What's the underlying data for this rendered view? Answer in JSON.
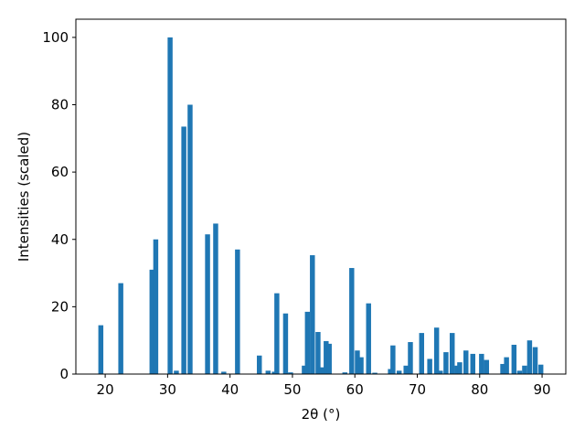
{
  "chart_data": {
    "type": "bar",
    "xlabel": "2θ (°)",
    "ylabel": "Intensities (scaled)",
    "color": "#1f77b4",
    "x": [
      19.3,
      22.5,
      27.5,
      28.1,
      30.4,
      31.4,
      32.6,
      33.6,
      36.4,
      37.7,
      39.0,
      41.2,
      44.7,
      46.1,
      47.1,
      47.5,
      48.9,
      49.7,
      51.9,
      52.4,
      53.2,
      54.1,
      54.8,
      55.4,
      55.9,
      58.4,
      59.5,
      60.4,
      61.0,
      62.2,
      63.2,
      65.7,
      66.1,
      67.1,
      68.2,
      68.9,
      70.7,
      72.0,
      73.1,
      73.7,
      74.6,
      75.6,
      76.4,
      76.8,
      77.8,
      78.9,
      80.3,
      81.1,
      83.7,
      84.3,
      85.5,
      86.4,
      87.2,
      88.0,
      88.9,
      89.8
    ],
    "values": [
      14.5,
      27,
      31,
      40,
      100,
      1,
      73.5,
      80,
      41.5,
      44.7,
      0.7,
      37,
      5.5,
      1,
      0.7,
      24,
      18,
      0.5,
      2.5,
      18.5,
      35.3,
      12.5,
      2,
      9.8,
      9,
      0.5,
      31.5,
      7,
      5,
      21,
      0.4,
      1.5,
      8.5,
      1,
      2.5,
      9.5,
      12.2,
      4.5,
      13.8,
      1,
      6.5,
      12.2,
      2.5,
      3.5,
      7,
      6,
      6,
      4.2,
      3,
      5,
      8.7,
      1,
      2.5,
      10,
      8,
      2.8
    ],
    "xlim": [
      15.3,
      93.8
    ],
    "ylim": [
      0,
      105.4
    ],
    "xticks": [
      20,
      30,
      40,
      50,
      60,
      70,
      80,
      90
    ],
    "yticks": [
      0,
      20,
      40,
      60,
      80,
      100
    ]
  }
}
